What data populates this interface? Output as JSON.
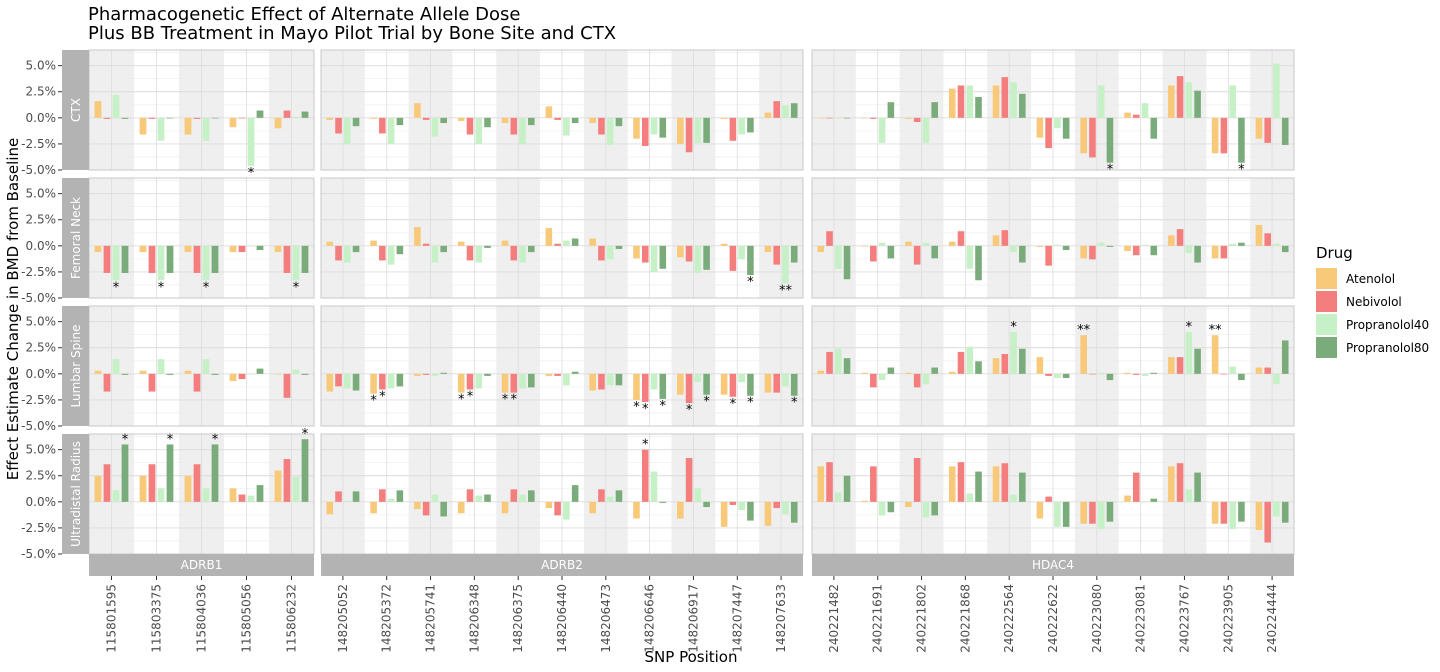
{
  "chart_data": {
    "type": "bar",
    "title_line1": "Pharmacogenetic Effect of Alternate Allele Dose",
    "title_line2": "Plus BB Treatment in Mayo Pilot Trial by Bone Site and CTX",
    "xlabel": "SNP Position",
    "ylabel": "Effect Estimate Change in BMD from Baseline",
    "ylim": [
      -5.0,
      6.5
    ],
    "y_ticks": [
      -5.0,
      -2.5,
      0.0,
      2.5,
      5.0
    ],
    "y_tick_labels": [
      "-5.0%",
      "-2.5%",
      "0.0%",
      "2.5%",
      "5.0%"
    ],
    "legend": {
      "title": "Drug",
      "position": "right",
      "items": [
        {
          "name": "Atenolol",
          "color": "#F9C97A"
        },
        {
          "name": "Nebivolol",
          "color": "#F47E7E"
        },
        {
          "name": "Propranolol40",
          "color": "#C6F0C6"
        },
        {
          "name": "Propranolol80",
          "color": "#7AAB7A"
        }
      ]
    },
    "rows": [
      "CTX",
      "Femoral Neck",
      "Lumbar Spine",
      "Ultradistal Radius"
    ],
    "genes": [
      {
        "name": "ADRB1",
        "snps": [
          "115801595",
          "115803375",
          "115804036",
          "115805056",
          "115806232"
        ]
      },
      {
        "name": "ADRB2",
        "snps": [
          "148205052",
          "148205372",
          "148205741",
          "148206348",
          "148206375",
          "148206440",
          "148206473",
          "148206646",
          "148206917",
          "148207447",
          "148207633"
        ]
      },
      {
        "name": "HDAC4",
        "snps": [
          "240221482",
          "240221691",
          "240221802",
          "240221868",
          "240222564",
          "240222622",
          "240223080",
          "240223081",
          "240223767",
          "240223905",
          "240224444"
        ]
      }
    ],
    "values": {
      "ADRB1": {
        "CTX": [
          [
            1.6,
            -0.1,
            2.2,
            -0.1
          ],
          [
            -1.6,
            -0.1,
            -2.2,
            0
          ],
          [
            -1.6,
            -0.1,
            -2.2,
            0
          ],
          [
            -0.9,
            0,
            -4.6,
            0.7
          ],
          [
            -1.0,
            0.7,
            0.1,
            0.6
          ]
        ],
        "Femoral Neck": [
          [
            -0.6,
            -2.6,
            -3.3,
            -2.6
          ],
          [
            -0.6,
            -2.6,
            -3.3,
            -2.6
          ],
          [
            -0.6,
            -2.6,
            -3.3,
            -2.6
          ],
          [
            -0.6,
            -0.6,
            0,
            -0.4
          ],
          [
            -0.6,
            -2.6,
            -3.3,
            -2.6
          ]
        ],
        "Lumbar Spine": [
          [
            0.3,
            -1.7,
            1.4,
            -0.1
          ],
          [
            0.3,
            -1.7,
            1.4,
            -0.1
          ],
          [
            0.3,
            -1.7,
            1.4,
            -0.1
          ],
          [
            -0.7,
            -0.5,
            0,
            0.5
          ],
          [
            0,
            -2.3,
            0.4,
            -0.1
          ]
        ],
        "Ultradistal Radius": [
          [
            2.5,
            3.6,
            1.1,
            5.5
          ],
          [
            2.5,
            3.6,
            1.3,
            5.5
          ],
          [
            2.5,
            3.6,
            1.3,
            5.5
          ],
          [
            1.3,
            0.7,
            0.6,
            1.6
          ],
          [
            3.0,
            4.1,
            2.4,
            6.0
          ]
        ]
      },
      "ADRB2": {
        "CTX": [
          [
            -0.2,
            -1.5,
            -2.5,
            -0.8
          ],
          [
            -0.1,
            -1.5,
            -2.5,
            -0.7
          ],
          [
            1.4,
            -0.2,
            -1.8,
            -0.5
          ],
          [
            -0.3,
            -1.6,
            -2.5,
            -0.9
          ],
          [
            -0.5,
            -1.6,
            -2.5,
            -0.7
          ],
          [
            1.1,
            -0.2,
            -1.7,
            -0.5
          ],
          [
            -0.5,
            -1.6,
            -2.6,
            -0.8
          ],
          [
            -2.0,
            -2.7,
            -1.6,
            -1.9
          ],
          [
            -2.5,
            -3.3,
            -2.4,
            -2.4
          ],
          [
            -0.1,
            -2.2,
            -1.6,
            -1.4
          ],
          [
            0.5,
            1.6,
            1.2,
            1.4
          ]
        ],
        "Femoral Neck": [
          [
            0.4,
            -1.4,
            -1.6,
            -0.6
          ],
          [
            0.5,
            -1.4,
            -1.8,
            -0.8
          ],
          [
            1.8,
            0.2,
            -1.6,
            -0.6
          ],
          [
            0.4,
            -1.4,
            -1.6,
            -0.2
          ],
          [
            0.5,
            -1.4,
            -1.6,
            -0.6
          ],
          [
            1.7,
            0.2,
            0.5,
            0.7
          ],
          [
            0.7,
            -1.4,
            -1.3,
            -0.3
          ],
          [
            -1.2,
            -1.6,
            -2.5,
            -2.2
          ],
          [
            -1.1,
            -1.5,
            -2.6,
            -2.3
          ],
          [
            0.2,
            -2.4,
            -1.3,
            -2.8
          ],
          [
            -0.6,
            -1.8,
            -3.6,
            -1.6
          ]
        ],
        "Lumbar Spine": [
          [
            -1.7,
            -1.2,
            -1.4,
            -1.6
          ],
          [
            -1.9,
            -1.5,
            -1.4,
            -1.2
          ],
          [
            -0.2,
            -0.1,
            -0.2,
            0.1
          ],
          [
            -1.8,
            -1.5,
            -1.4,
            -0.2
          ],
          [
            -1.8,
            -1.8,
            -1.4,
            -1.3
          ],
          [
            -0.2,
            -0.2,
            -1.1,
            0.2
          ],
          [
            -1.6,
            -1.5,
            -1.1,
            -1.1
          ],
          [
            -2.5,
            -2.7,
            -1.5,
            -2.4
          ],
          [
            -2.0,
            -2.8,
            -0.8,
            -2.0
          ],
          [
            -2.0,
            -2.2,
            -0.8,
            -2.1
          ],
          [
            -1.8,
            -1.8,
            -1.2,
            -2.1
          ]
        ],
        "Ultradistal Radius": [
          [
            -1.2,
            1.0,
            0.1,
            1.0
          ],
          [
            -1.1,
            1.2,
            0.3,
            1.1
          ],
          [
            -0.7,
            -1.3,
            0.7,
            -1.4
          ],
          [
            -1.1,
            1.2,
            0.6,
            0.7
          ],
          [
            -1.1,
            1.2,
            0.7,
            1.1
          ],
          [
            -0.6,
            -1.3,
            -1.7,
            1.6
          ],
          [
            -1.1,
            1.2,
            0.5,
            1.1
          ],
          [
            -1.6,
            5.0,
            2.9,
            -0.1
          ],
          [
            -1.6,
            4.2,
            1.3,
            -0.5
          ],
          [
            -2.4,
            -0.3,
            -0.8,
            -1.8
          ],
          [
            -2.3,
            -0.6,
            -1.2,
            -2.0
          ]
        ]
      },
      "HDAC4": {
        "CTX": [
          [
            0,
            0,
            0,
            0
          ],
          [
            0,
            -0.1,
            -2.4,
            1.5
          ],
          [
            -0.1,
            -0.4,
            -2.4,
            1.5
          ],
          [
            2.8,
            3.1,
            3.1,
            2.0
          ],
          [
            3.1,
            3.9,
            3.4,
            2.3
          ],
          [
            -1.9,
            -2.9,
            -1.0,
            -2.0
          ],
          [
            -3.4,
            -3.8,
            3.1,
            -4.3
          ],
          [
            0.5,
            0.3,
            1.4,
            -2.0
          ],
          [
            3.1,
            4.0,
            3.4,
            2.6
          ],
          [
            -3.4,
            -3.4,
            3.1,
            -4.3
          ],
          [
            -2.0,
            -2.4,
            5.2,
            -2.6
          ]
        ],
        "Femoral Neck": [
          [
            -0.6,
            1.4,
            -2.2,
            -3.2
          ],
          [
            0,
            -1.5,
            0.3,
            -1.2
          ],
          [
            0.4,
            -1.8,
            0.3,
            -1.2
          ],
          [
            0.4,
            1.4,
            -2.2,
            -3.3
          ],
          [
            1.0,
            1.5,
            -0.6,
            -1.6
          ],
          [
            -0.1,
            -1.9,
            0.1,
            -0.4
          ],
          [
            -1.2,
            -1.3,
            0.3,
            -0.1
          ],
          [
            -0.5,
            -0.9,
            0.1,
            -0.9
          ],
          [
            1.0,
            1.6,
            -0.7,
            -1.6
          ],
          [
            -1.2,
            -1.2,
            0.2,
            0.3
          ],
          [
            2.0,
            1.2,
            0.2,
            -0.6
          ]
        ],
        "Lumbar Spine": [
          [
            0.3,
            2.1,
            2.4,
            1.5
          ],
          [
            0.1,
            -1.3,
            -0.6,
            0.6
          ],
          [
            0.1,
            -1.3,
            -1.0,
            0.6
          ],
          [
            0.2,
            2.1,
            2.6,
            1.2
          ],
          [
            1.5,
            1.9,
            4.0,
            2.4
          ],
          [
            1.6,
            -0.2,
            -0.4,
            -0.4
          ],
          [
            3.7,
            0,
            0.1,
            -0.6
          ],
          [
            0.1,
            -0.1,
            -0.2,
            0.1
          ],
          [
            1.6,
            1.6,
            4.0,
            2.4
          ],
          [
            3.7,
            0,
            0.7,
            -0.6
          ],
          [
            0.6,
            0.6,
            -1.0,
            3.2
          ]
        ],
        "Ultradistal Radius": [
          [
            3.4,
            3.8,
            0.9,
            2.5
          ],
          [
            0.1,
            3.4,
            -1.3,
            -1.0
          ],
          [
            -0.5,
            4.2,
            -1.5,
            -1.3
          ],
          [
            3.4,
            3.8,
            0.8,
            2.9
          ],
          [
            3.4,
            3.7,
            0.7,
            2.8
          ],
          [
            -1.6,
            0.5,
            -2.4,
            -2.4
          ],
          [
            -2.1,
            -2.1,
            -2.6,
            -1.9
          ],
          [
            0.6,
            2.8,
            0,
            0.3
          ],
          [
            3.4,
            3.7,
            1.2,
            2.8
          ],
          [
            -2.1,
            -2.1,
            -2.6,
            -1.9
          ],
          [
            -2.7,
            -3.9,
            -1.4,
            -2.0
          ]
        ]
      }
    },
    "significance": [
      {
        "gene": "ADRB1",
        "row": "CTX",
        "snp": 3,
        "drug": 2,
        "label": "*"
      },
      {
        "gene": "ADRB1",
        "row": "Femoral Neck",
        "snp": 0,
        "drug": 2,
        "label": "*"
      },
      {
        "gene": "ADRB1",
        "row": "Femoral Neck",
        "snp": 1,
        "drug": 2,
        "label": "*"
      },
      {
        "gene": "ADRB1",
        "row": "Femoral Neck",
        "snp": 2,
        "drug": 2,
        "label": "*"
      },
      {
        "gene": "ADRB1",
        "row": "Femoral Neck",
        "snp": 4,
        "drug": 2,
        "label": "*"
      },
      {
        "gene": "ADRB1",
        "row": "Ultradistal Radius",
        "snp": 0,
        "drug": 3,
        "label": "*"
      },
      {
        "gene": "ADRB1",
        "row": "Ultradistal Radius",
        "snp": 1,
        "drug": 3,
        "label": "*"
      },
      {
        "gene": "ADRB1",
        "row": "Ultradistal Radius",
        "snp": 2,
        "drug": 3,
        "label": "*"
      },
      {
        "gene": "ADRB1",
        "row": "Ultradistal Radius",
        "snp": 4,
        "drug": 3,
        "label": "*"
      },
      {
        "gene": "ADRB2",
        "row": "Femoral Neck",
        "snp": 9,
        "drug": 3,
        "label": "*"
      },
      {
        "gene": "ADRB2",
        "row": "Femoral Neck",
        "snp": 10,
        "drug": 2,
        "label": "**"
      },
      {
        "gene": "ADRB2",
        "row": "Lumbar Spine",
        "snp": 1,
        "drug": 0,
        "label": "*"
      },
      {
        "gene": "ADRB2",
        "row": "Lumbar Spine",
        "snp": 1,
        "drug": 1,
        "label": "*"
      },
      {
        "gene": "ADRB2",
        "row": "Lumbar Spine",
        "snp": 3,
        "drug": 0,
        "label": "*"
      },
      {
        "gene": "ADRB2",
        "row": "Lumbar Spine",
        "snp": 3,
        "drug": 1,
        "label": "*"
      },
      {
        "gene": "ADRB2",
        "row": "Lumbar Spine",
        "snp": 4,
        "drug": 0,
        "label": "*"
      },
      {
        "gene": "ADRB2",
        "row": "Lumbar Spine",
        "snp": 4,
        "drug": 1,
        "label": "*"
      },
      {
        "gene": "ADRB2",
        "row": "Lumbar Spine",
        "snp": 7,
        "drug": 0,
        "label": "*"
      },
      {
        "gene": "ADRB2",
        "row": "Lumbar Spine",
        "snp": 7,
        "drug": 1,
        "label": "*"
      },
      {
        "gene": "ADRB2",
        "row": "Lumbar Spine",
        "snp": 7,
        "drug": 3,
        "label": "*"
      },
      {
        "gene": "ADRB2",
        "row": "Lumbar Spine",
        "snp": 8,
        "drug": 1,
        "label": "*"
      },
      {
        "gene": "ADRB2",
        "row": "Lumbar Spine",
        "snp": 8,
        "drug": 3,
        "label": "*"
      },
      {
        "gene": "ADRB2",
        "row": "Lumbar Spine",
        "snp": 9,
        "drug": 1,
        "label": "*"
      },
      {
        "gene": "ADRB2",
        "row": "Lumbar Spine",
        "snp": 9,
        "drug": 3,
        "label": "*"
      },
      {
        "gene": "ADRB2",
        "row": "Lumbar Spine",
        "snp": 10,
        "drug": 3,
        "label": "*"
      },
      {
        "gene": "ADRB2",
        "row": "Ultradistal Radius",
        "snp": 7,
        "drug": 1,
        "label": "*"
      },
      {
        "gene": "HDAC4",
        "row": "CTX",
        "snp": 6,
        "drug": 3,
        "label": "*"
      },
      {
        "gene": "HDAC4",
        "row": "CTX",
        "snp": 9,
        "drug": 3,
        "label": "*"
      },
      {
        "gene": "HDAC4",
        "row": "Lumbar Spine",
        "snp": 4,
        "drug": 2,
        "label": "*"
      },
      {
        "gene": "HDAC4",
        "row": "Lumbar Spine",
        "snp": 6,
        "drug": 0,
        "label": "**"
      },
      {
        "gene": "HDAC4",
        "row": "Lumbar Spine",
        "snp": 8,
        "drug": 2,
        "label": "*"
      },
      {
        "gene": "HDAC4",
        "row": "Lumbar Spine",
        "snp": 9,
        "drug": 0,
        "label": "**"
      }
    ]
  }
}
